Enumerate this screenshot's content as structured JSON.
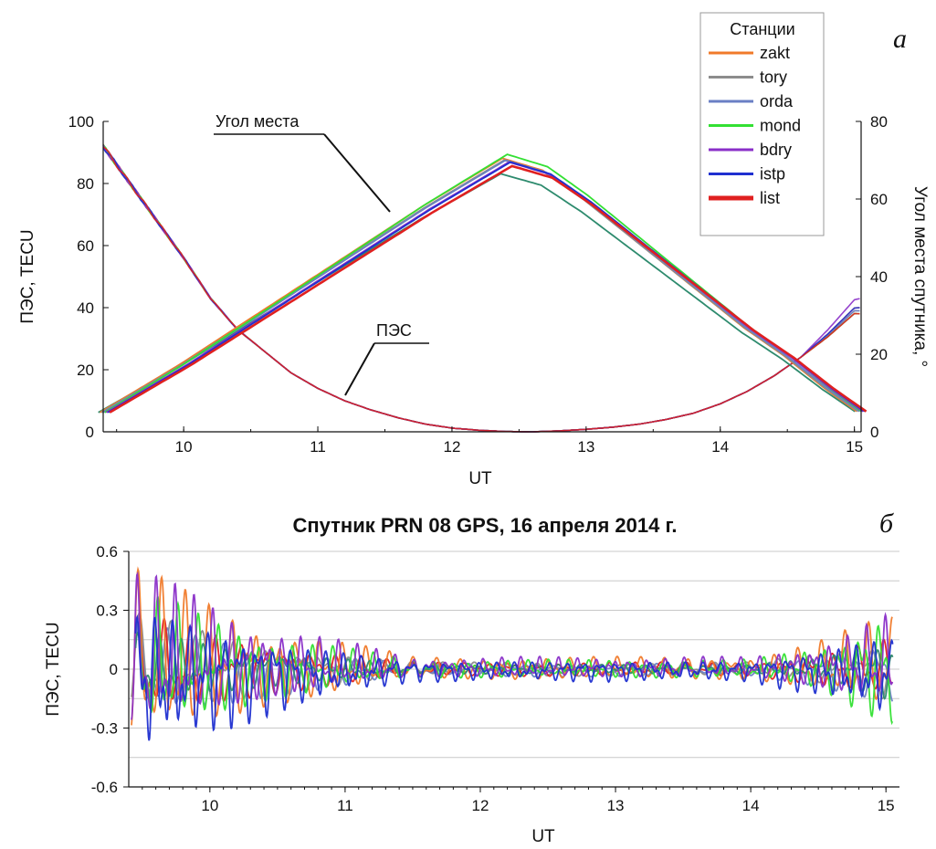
{
  "colors": {
    "zakt": "#f07a2a",
    "tory": "#8c8c8c",
    "orda": "#6a7fc4",
    "mond": "#33e033",
    "bdry": "#8a2fc8",
    "istp": "#1f2fd0",
    "list": "#e02020",
    "extra": "#2e8b6e",
    "axis": "#111111",
    "grid": "#c8c8c8"
  },
  "chart_data": [
    {
      "panel_label": "а",
      "type": "line",
      "title": "",
      "xlabel": "UT",
      "ylabel": "ПЭС, TECU",
      "y2label": "Угол места спутника, °",
      "xlim": [
        9.4,
        15.05
      ],
      "ylim": [
        0,
        100
      ],
      "y2lim": [
        0,
        80
      ],
      "xticks": [
        "10",
        "11",
        "12",
        "13",
        "14",
        "15"
      ],
      "yticks": [
        "0",
        "20",
        "40",
        "60",
        "80",
        "100"
      ],
      "y2ticks": [
        "0",
        "20",
        "40",
        "60",
        "80"
      ],
      "grid": false,
      "legend": {
        "title": "Станции",
        "position": "top-right",
        "entries": [
          "zakt",
          "tory",
          "orda",
          "mond",
          "bdry",
          "istp",
          "list"
        ]
      },
      "annotations": [
        {
          "text": "Угол места",
          "target": "elevation"
        },
        {
          "text": "ПЭС",
          "target": "tec"
        }
      ],
      "tec_series": {
        "x": [
          9.4,
          9.6,
          9.8,
          10.0,
          10.2,
          10.4,
          10.6,
          10.8,
          11.0,
          11.2,
          11.4,
          11.6,
          11.8,
          12.0,
          12.2,
          12.4,
          12.6,
          12.8,
          13.0,
          13.2,
          13.4,
          13.6,
          13.8,
          14.0,
          14.2,
          14.4,
          14.6,
          14.8,
          15.0
        ],
        "y": [
          92,
          80,
          68,
          56,
          43,
          33,
          26,
          19,
          14,
          10,
          7,
          4.5,
          2.5,
          1.2,
          0.5,
          0.1,
          0,
          0.3,
          0.8,
          1.5,
          2.5,
          4,
          6,
          9,
          13,
          18,
          24,
          31,
          39
        ],
        "per_station_end": {
          "zakt": 40,
          "tory": 39,
          "orda": 39,
          "mond": 38,
          "bdry": 43,
          "istp": 40,
          "list": 38
        }
      },
      "elevation_series": {
        "x": [
          9.4,
          9.7,
          10.0,
          10.3,
          10.6,
          10.9,
          11.2,
          11.5,
          11.8,
          12.1,
          12.4,
          12.7,
          13.0,
          13.3,
          13.6,
          13.9,
          14.2,
          14.5,
          14.8,
          15.05
        ],
        "y": [
          5,
          11,
          17,
          23.5,
          30,
          36.5,
          43,
          49.5,
          56,
          62,
          68,
          65,
          58,
          50,
          42,
          34,
          26,
          19,
          11,
          5
        ],
        "peaks": {
          "mond": 71.5,
          "zakt": 70.5,
          "tory": 70,
          "orda": 70,
          "bdry": 69.5,
          "istp": 69.5,
          "list": 68.5,
          "extra": 66.5
        }
      }
    },
    {
      "panel_label": "б",
      "type": "line",
      "title": "Спутник PRN 08 GPS, 16 апреля 2014 г.",
      "xlabel": "UT",
      "ylabel": "ПЭС, TECU",
      "xlim": [
        9.4,
        15.1
      ],
      "ylim": [
        -0.6,
        0.6
      ],
      "xticks": [
        "10",
        "11",
        "12",
        "13",
        "14",
        "15"
      ],
      "yticks": [
        "-0.6",
        "-0.3",
        "0",
        "0.3",
        "0.6"
      ],
      "grid": true,
      "series": [
        {
          "name": "zakt",
          "amp_max": 0.54,
          "amp_min": -0.43
        },
        {
          "name": "tory",
          "amp_max": 0.3,
          "amp_min": -0.3
        },
        {
          "name": "orda",
          "amp_max": 0.25,
          "amp_min": -0.33
        },
        {
          "name": "mond",
          "amp_max": 0.42,
          "amp_min": -0.37
        },
        {
          "name": "bdry",
          "amp_max": 0.54,
          "amp_min": -0.32
        },
        {
          "name": "istp",
          "amp_max": 0.3,
          "amp_min": -0.55
        },
        {
          "name": "list",
          "amp_max": 0.3,
          "amp_min": -0.3
        }
      ]
    }
  ]
}
